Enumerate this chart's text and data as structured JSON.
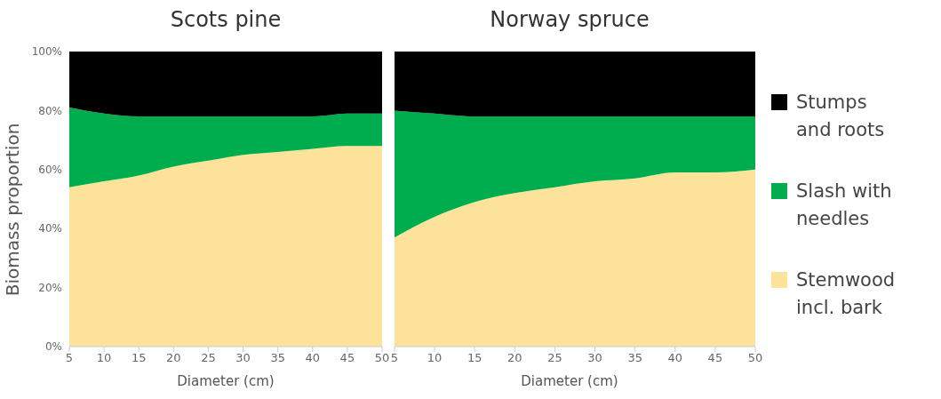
{
  "chart_data": [
    {
      "type": "area",
      "title": "Scots pine",
      "xlabel": "Diameter (cm)",
      "ylabel": "Biomass proportion",
      "stacked": true,
      "x": [
        5,
        10,
        15,
        20,
        25,
        30,
        35,
        40,
        45,
        50
      ],
      "xlim": [
        5,
        50
      ],
      "xticks": [
        5,
        10,
        15,
        20,
        25,
        30,
        35,
        40,
        45,
        50
      ],
      "ylim": [
        0,
        100
      ],
      "yticks": [
        {
          "value": 0,
          "label": "0%"
        },
        {
          "value": 20,
          "label": "20%"
        },
        {
          "value": 40,
          "label": "40%"
        },
        {
          "value": 60,
          "label": "60%"
        },
        {
          "value": 80,
          "label": "80%"
        },
        {
          "value": 100,
          "label": "100%"
        }
      ],
      "grid": false,
      "legend": false,
      "series": [
        {
          "color": "#fde399",
          "values": [
            54,
            56,
            58,
            61,
            63,
            65,
            66,
            67,
            68,
            68
          ]
        },
        {
          "color": "#00ad4e",
          "values": [
            27,
            23,
            20,
            17,
            15,
            13,
            12,
            11,
            11,
            11
          ]
        },
        {
          "color": "#000000",
          "values": [
            19,
            21,
            22,
            22,
            22,
            22,
            22,
            22,
            21,
            21
          ]
        }
      ]
    },
    {
      "type": "area",
      "title": "Norway spruce",
      "xlabel": "Diameter (cm)",
      "stacked": true,
      "x": [
        5,
        10,
        15,
        20,
        25,
        30,
        35,
        40,
        45,
        50
      ],
      "xlim": [
        5,
        50
      ],
      "xticks": [
        5,
        10,
        15,
        20,
        25,
        30,
        35,
        40,
        45,
        50
      ],
      "ylim": [
        0,
        100
      ],
      "tick_labels": "x",
      "grid": false,
      "legend": "right",
      "series": [
        {
          "name": "Stemwood incl. bark",
          "color": "#fde399",
          "values": [
            37,
            44,
            49,
            52,
            54,
            56,
            57,
            59,
            59,
            60
          ]
        },
        {
          "name": "Slash with needles",
          "color": "#00ad4e",
          "values": [
            43,
            35,
            29,
            26,
            24,
            22,
            21,
            19,
            19,
            18
          ]
        },
        {
          "name": "Stumps and roots",
          "color": "#000000",
          "values": [
            20,
            21,
            22,
            22,
            22,
            22,
            22,
            22,
            22,
            22
          ]
        }
      ]
    }
  ]
}
